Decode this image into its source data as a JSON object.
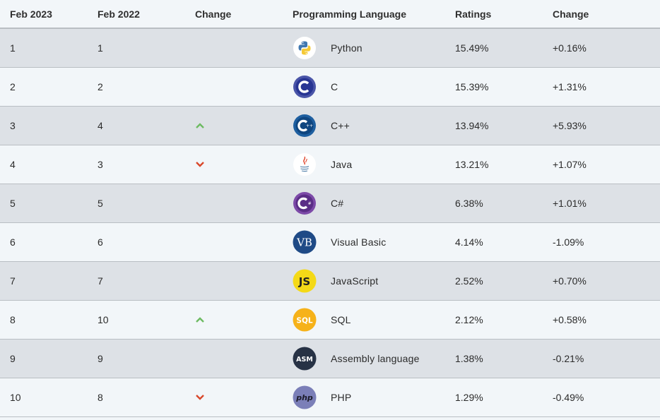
{
  "headers": [
    "Feb 2023",
    "Feb 2022",
    "Change",
    "Programming Language",
    "Ratings",
    "Change"
  ],
  "rows": [
    {
      "feb2023": "1",
      "feb2022": "1",
      "trend": "none",
      "language": "Python",
      "icon": "python-icon",
      "rating": "15.49%",
      "change": "+0.16%"
    },
    {
      "feb2023": "2",
      "feb2022": "2",
      "trend": "none",
      "language": "C",
      "icon": "c-icon",
      "rating": "15.39%",
      "change": "+1.31%"
    },
    {
      "feb2023": "3",
      "feb2022": "4",
      "trend": "up",
      "language": "C++",
      "icon": "cpp-icon",
      "rating": "13.94%",
      "change": "+5.93%"
    },
    {
      "feb2023": "4",
      "feb2022": "3",
      "trend": "down",
      "language": "Java",
      "icon": "java-icon",
      "rating": "13.21%",
      "change": "+1.07%"
    },
    {
      "feb2023": "5",
      "feb2022": "5",
      "trend": "none",
      "language": "C#",
      "icon": "csharp-icon",
      "rating": "6.38%",
      "change": "+1.01%"
    },
    {
      "feb2023": "6",
      "feb2022": "6",
      "trend": "none",
      "language": "Visual Basic",
      "icon": "visual-basic-icon",
      "icon_text": "VB",
      "rating": "4.14%",
      "change": "-1.09%"
    },
    {
      "feb2023": "7",
      "feb2022": "7",
      "trend": "none",
      "language": "JavaScript",
      "icon": "javascript-icon",
      "icon_text": "JS",
      "rating": "2.52%",
      "change": "+0.70%"
    },
    {
      "feb2023": "8",
      "feb2022": "10",
      "trend": "up",
      "language": "SQL",
      "icon": "sql-icon",
      "icon_text": "SQL",
      "rating": "2.12%",
      "change": "+0.58%"
    },
    {
      "feb2023": "9",
      "feb2022": "9",
      "trend": "none",
      "language": "Assembly language",
      "icon": "assembly-icon",
      "icon_text": "ASM",
      "rating": "1.38%",
      "change": "-0.21%"
    },
    {
      "feb2023": "10",
      "feb2022": "8",
      "trend": "down",
      "language": "PHP",
      "icon": "php-icon",
      "icon_text": "php",
      "rating": "1.29%",
      "change": "-0.49%"
    }
  ],
  "colors": {
    "up_arrow": "#6dbb62",
    "down_arrow": "#d9482b",
    "odd_row": "#dde1e6",
    "even_row": "#f2f6f9"
  }
}
